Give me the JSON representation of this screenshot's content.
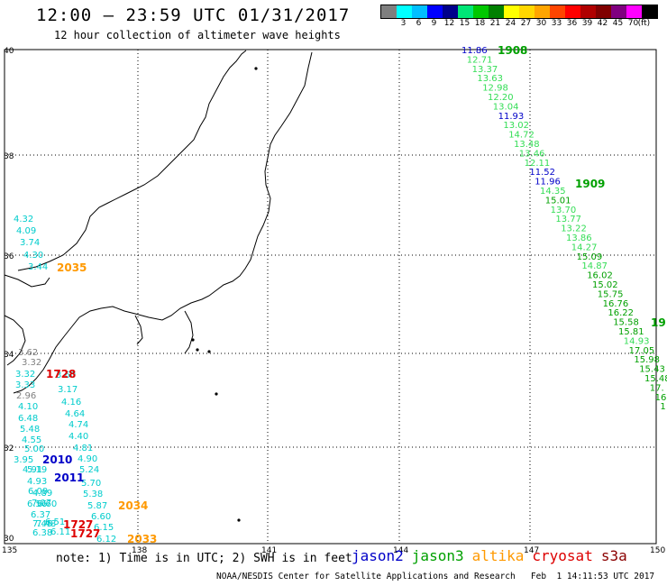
{
  "header": {
    "title": "12:00 – 23:59 UTC 01/31/2017",
    "subtitle": "12 hour collection of altimeter wave heights"
  },
  "legend": {
    "unit": "(ft)",
    "colors": [
      "#7f7f7f",
      "#00ffff",
      "#00bfff",
      "#0000ff",
      "#00008b",
      "#00e676",
      "#00c800",
      "#008000",
      "#ffff00",
      "#ffd700",
      "#ffa500",
      "#ff4500",
      "#ff0000",
      "#b00000",
      "#800000",
      "#800080",
      "#ff00ff",
      "#000000"
    ],
    "labels": [
      "3",
      "6",
      "9",
      "12",
      "15",
      "18",
      "21",
      "24",
      "27",
      "30",
      "33",
      "36",
      "39",
      "42",
      "45",
      "70"
    ]
  },
  "map": {
    "x_ticks": [
      "135",
      "138",
      "141",
      "144",
      "147",
      "150"
    ],
    "y_ticks": [
      "40",
      "38",
      "36",
      "34",
      "32",
      "30"
    ],
    "colors": {
      "jason2": "#0000c8",
      "jason3": "#00a000",
      "jason3_light": "#33dd55",
      "altika": "#ff9900",
      "cryosat": "#dd0000",
      "s3a": "#8b0000",
      "cyan": "#00cccc",
      "gray": "#808080"
    },
    "east_track": {
      "values": [
        {
          "v": "11.86",
          "c": "jason2"
        },
        {
          "v": "12.71",
          "c": "jason3_light"
        },
        {
          "v": "13.37",
          "c": "jason3_light"
        },
        {
          "v": "13.63",
          "c": "jason3_light"
        },
        {
          "v": "12.98",
          "c": "jason3_light"
        },
        {
          "v": "12.20",
          "c": "jason3_light"
        },
        {
          "v": "13.04",
          "c": "jason3_light"
        },
        {
          "v": "11.93",
          "c": "jason2"
        },
        {
          "v": "13.02",
          "c": "jason3_light"
        },
        {
          "v": "14.72",
          "c": "jason3_light"
        },
        {
          "v": "13.48",
          "c": "jason3_light"
        },
        {
          "v": "13.46",
          "c": "jason3_light"
        },
        {
          "v": "12.11",
          "c": "jason3_light"
        },
        {
          "v": "11.52",
          "c": "jason2"
        },
        {
          "v": "11.96",
          "c": "jason2"
        },
        {
          "v": "14.35",
          "c": "jason3_light"
        },
        {
          "v": "15.01",
          "c": "jason3"
        },
        {
          "v": "13.70",
          "c": "jason3_light"
        },
        {
          "v": "13.77",
          "c": "jason3_light"
        },
        {
          "v": "13.22",
          "c": "jason3_light"
        },
        {
          "v": "13.86",
          "c": "jason3_light"
        },
        {
          "v": "14.27",
          "c": "jason3_light"
        },
        {
          "v": "15.09",
          "c": "jason3"
        },
        {
          "v": "14.87",
          "c": "jason3_light"
        },
        {
          "v": "16.02",
          "c": "jason3"
        },
        {
          "v": "15.02",
          "c": "jason3"
        },
        {
          "v": "15.75",
          "c": "jason3"
        },
        {
          "v": "16.76",
          "c": "jason3"
        },
        {
          "v": "16.22",
          "c": "jason3"
        },
        {
          "v": "15.58",
          "c": "jason3"
        },
        {
          "v": "15.81",
          "c": "jason3"
        },
        {
          "v": "14.93",
          "c": "jason3_light"
        },
        {
          "v": "17.05",
          "c": "jason3"
        },
        {
          "v": "15.98",
          "c": "jason3"
        },
        {
          "v": "15.43",
          "c": "jason3"
        },
        {
          "v": "15.48",
          "c": "jason3"
        },
        {
          "v": "17.",
          "c": "jason3"
        },
        {
          "v": "16",
          "c": "jason3"
        },
        {
          "v": "1",
          "c": "jason3"
        }
      ],
      "times": [
        {
          "t": "1908",
          "c": "jason3"
        },
        {
          "t": "1909",
          "c": "jason3"
        },
        {
          "t": "19",
          "c": "jason3"
        }
      ]
    },
    "west_values": [
      {
        "v": "4.32",
        "c": "cyan"
      },
      {
        "v": "4.09",
        "c": "cyan"
      },
      {
        "v": "3.74",
        "c": "cyan"
      },
      {
        "v": "4.30",
        "c": "cyan"
      },
      {
        "v": "3.44",
        "c": "cyan"
      },
      {
        "v": "3.62",
        "c": "gray"
      },
      {
        "v": "3.32",
        "c": "gray"
      },
      {
        "v": "3.32",
        "c": "cyan"
      },
      {
        "v": "3.33",
        "c": "cyan"
      },
      {
        "v": "2.96",
        "c": "gray"
      },
      {
        "v": "4.10",
        "c": "cyan"
      },
      {
        "v": "6.48",
        "c": "cyan"
      },
      {
        "v": "5.48",
        "c": "cyan"
      },
      {
        "v": "4.55",
        "c": "cyan"
      },
      {
        "v": "5.00",
        "c": "cyan"
      },
      {
        "v": "3.95",
        "c": "cyan"
      },
      {
        "v": "4.91",
        "c": "cyan"
      },
      {
        "v": "5.19",
        "c": "cyan"
      },
      {
        "v": "4.93",
        "c": "cyan"
      },
      {
        "v": "6.09",
        "c": "cyan"
      },
      {
        "v": "4.89",
        "c": "cyan"
      },
      {
        "v": "7.07",
        "c": "cyan"
      },
      {
        "v": "6.56",
        "c": "cyan"
      },
      {
        "v": "6.60",
        "c": "cyan"
      },
      {
        "v": "6.37",
        "c": "cyan"
      },
      {
        "v": "7.45",
        "c": "cyan"
      },
      {
        "v": "7.48",
        "c": "cyan"
      },
      {
        "v": "6.51",
        "c": "cyan"
      },
      {
        "v": "6.38",
        "c": "cyan"
      },
      {
        "v": "6.11",
        "c": "cyan"
      },
      {
        "v": "3.60",
        "c": "cyan"
      },
      {
        "v": "3.17",
        "c": "cyan"
      },
      {
        "v": "4.16",
        "c": "cyan"
      },
      {
        "v": "4.64",
        "c": "cyan"
      },
      {
        "v": "4.74",
        "c": "cyan"
      },
      {
        "v": "4.40",
        "c": "cyan"
      },
      {
        "v": "4.81",
        "c": "cyan"
      },
      {
        "v": "4.90",
        "c": "cyan"
      },
      {
        "v": "5.24",
        "c": "cyan"
      },
      {
        "v": "5.70",
        "c": "cyan"
      },
      {
        "v": "5.38",
        "c": "cyan"
      },
      {
        "v": "5.87",
        "c": "cyan"
      },
      {
        "v": "6.60",
        "c": "cyan"
      },
      {
        "v": "6.15",
        "c": "cyan"
      },
      {
        "v": "6.12",
        "c": "cyan"
      }
    ],
    "west_times": [
      {
        "t": "2035",
        "c": "altika"
      },
      {
        "t": "1728",
        "c": "cryosat"
      },
      {
        "t": "2010",
        "c": "jason2"
      },
      {
        "t": "2011",
        "c": "jason2"
      },
      {
        "t": "2034",
        "c": "altika"
      },
      {
        "t": "1727",
        "c": "cryosat"
      },
      {
        "t": "1727",
        "c": "cryosat"
      },
      {
        "t": "2033",
        "c": "altika"
      }
    ]
  },
  "footer": {
    "note": "note: 1) Time is in UTC; 2) SWH is in feet",
    "satellites": [
      {
        "name": "jason2",
        "color": "#0000c8"
      },
      {
        "name": "jason3",
        "color": "#00a000"
      },
      {
        "name": "altika",
        "color": "#ff9900"
      },
      {
        "name": "cryosat",
        "color": "#dd0000"
      },
      {
        "name": "s3a",
        "color": "#8b0000"
      }
    ],
    "credit": "NOAA/NESDIS Center for Satellite Applications and Research   Feb  1 14:11:53 UTC 2017"
  }
}
